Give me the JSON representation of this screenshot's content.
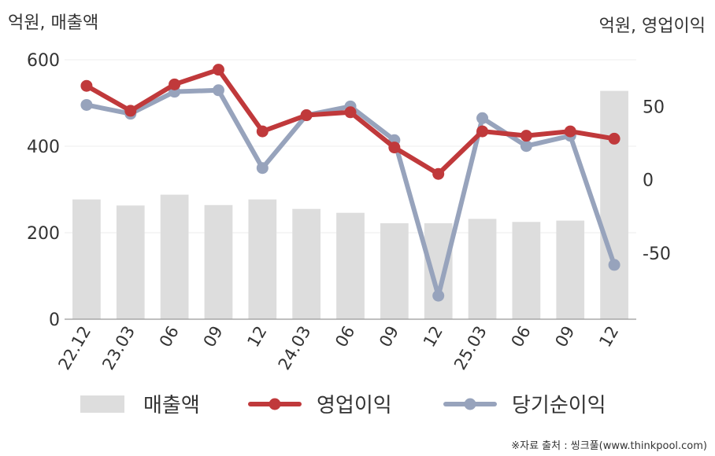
{
  "chart_data": {
    "type": "bar+line",
    "left_axis_label": "억원, 매출액",
    "right_axis_label": "억원, 영업이익",
    "categories": [
      "22.12",
      "23.03",
      "06",
      "09",
      "12",
      "24.03",
      "06",
      "09",
      "12",
      "25.03",
      "06",
      "09",
      "12"
    ],
    "left_axis": {
      "ticks": [
        0,
        200,
        400,
        600
      ],
      "ylim": [
        0,
        600
      ]
    },
    "right_axis": {
      "ticks": [
        -50,
        0,
        50
      ],
      "ylim": [
        -95,
        85
      ]
    },
    "series": [
      {
        "name": "매출액",
        "type": "bar",
        "axis": "left",
        "color": "#dddddd",
        "values": [
          277,
          263,
          288,
          264,
          277,
          255,
          246,
          222,
          222,
          232,
          225,
          228,
          528
        ]
      },
      {
        "name": "영업이익",
        "type": "line",
        "axis": "right",
        "color": "#c0393b",
        "values": [
          64,
          47,
          65,
          75,
          33,
          44,
          46,
          22,
          4,
          33,
          30,
          33,
          28
        ]
      },
      {
        "name": "당기순이익",
        "type": "line",
        "axis": "right",
        "color": "#97a3bc",
        "values": [
          51,
          45,
          60,
          61,
          8,
          44,
          50,
          27,
          -79,
          42,
          23,
          30,
          -58
        ]
      }
    ],
    "legend": [
      "매출액",
      "영업이익",
      "당기순이익"
    ],
    "legend_position": "bottom",
    "grid": true
  },
  "source_note": "※자료 출처 : 씽크풀(www.thinkpool.com)"
}
